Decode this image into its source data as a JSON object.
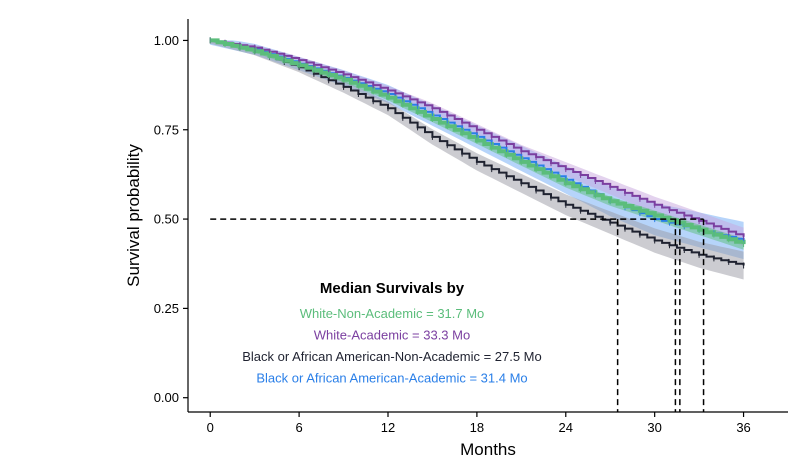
{
  "chart_data": {
    "type": "line",
    "xlabel": "Months",
    "ylabel": "Survival probability",
    "xlim": [
      -1.5,
      39
    ],
    "ylim": [
      -0.04,
      1.06
    ],
    "x_ticks": [
      0,
      6,
      12,
      18,
      24,
      30,
      36
    ],
    "y_ticks": [
      0.0,
      0.25,
      0.5,
      0.75,
      1.0
    ],
    "y_tick_labels": [
      "0.00",
      "0.25",
      "0.50",
      "0.75",
      "1.00"
    ],
    "grid": false,
    "series": [
      {
        "color": "#5bbd7b",
        "band_color": "#5bbd7b",
        "x": [
          0,
          3,
          6,
          9,
          12,
          15,
          18,
          21,
          24,
          27,
          30,
          33,
          36
        ],
        "values": [
          1.0,
          0.97,
          0.93,
          0.89,
          0.84,
          0.78,
          0.72,
          0.66,
          0.6,
          0.55,
          0.51,
          0.47,
          0.43
        ],
        "band_halfwidth": 0.012
      },
      {
        "color": "#7b3fa0",
        "band_color": "#c8a6de",
        "x": [
          0,
          3,
          6,
          9,
          12,
          15,
          18,
          21,
          24,
          27,
          30,
          33,
          36
        ],
        "values": [
          1.0,
          0.98,
          0.945,
          0.905,
          0.86,
          0.81,
          0.75,
          0.69,
          0.64,
          0.59,
          0.54,
          0.495,
          0.45
        ],
        "band_halfwidth": 0.02
      },
      {
        "color": "#1f2230",
        "band_color": "#9a9aa3",
        "x": [
          0,
          3,
          6,
          9,
          12,
          15,
          18,
          21,
          24,
          27,
          30,
          33,
          36
        ],
        "values": [
          1.0,
          0.97,
          0.925,
          0.87,
          0.81,
          0.73,
          0.66,
          0.6,
          0.54,
          0.49,
          0.44,
          0.4,
          0.37
        ],
        "band_halfwidth": 0.03
      },
      {
        "color": "#2a7fe8",
        "band_color": "#7ab0f5",
        "x": [
          0,
          3,
          6,
          9,
          12,
          15,
          18,
          21,
          24,
          27,
          30,
          33,
          36
        ],
        "values": [
          1.0,
          0.975,
          0.935,
          0.895,
          0.85,
          0.79,
          0.73,
          0.67,
          0.61,
          0.55,
          0.5,
          0.47,
          0.44
        ],
        "band_halfwidth": 0.04
      }
    ],
    "median_reference": {
      "y": 0.5,
      "x_from": 0,
      "x_to": 33.3,
      "medians": [
        27.5,
        31.4,
        31.7,
        33.3
      ]
    },
    "annotation": {
      "title": "Median Survivals by",
      "lines": [
        {
          "text": "White-Non-Academic = 31.7 Mo",
          "color": "#5bbd7b"
        },
        {
          "text": "White-Academic = 33.3 Mo",
          "color": "#7b3fa0"
        },
        {
          "text": "Black or African American-Non-Academic = 27.5 Mo",
          "color": "#1f2230"
        },
        {
          "text": "Black or African American-Academic = 31.4 Mo",
          "color": "#2a7fe8"
        }
      ]
    }
  }
}
